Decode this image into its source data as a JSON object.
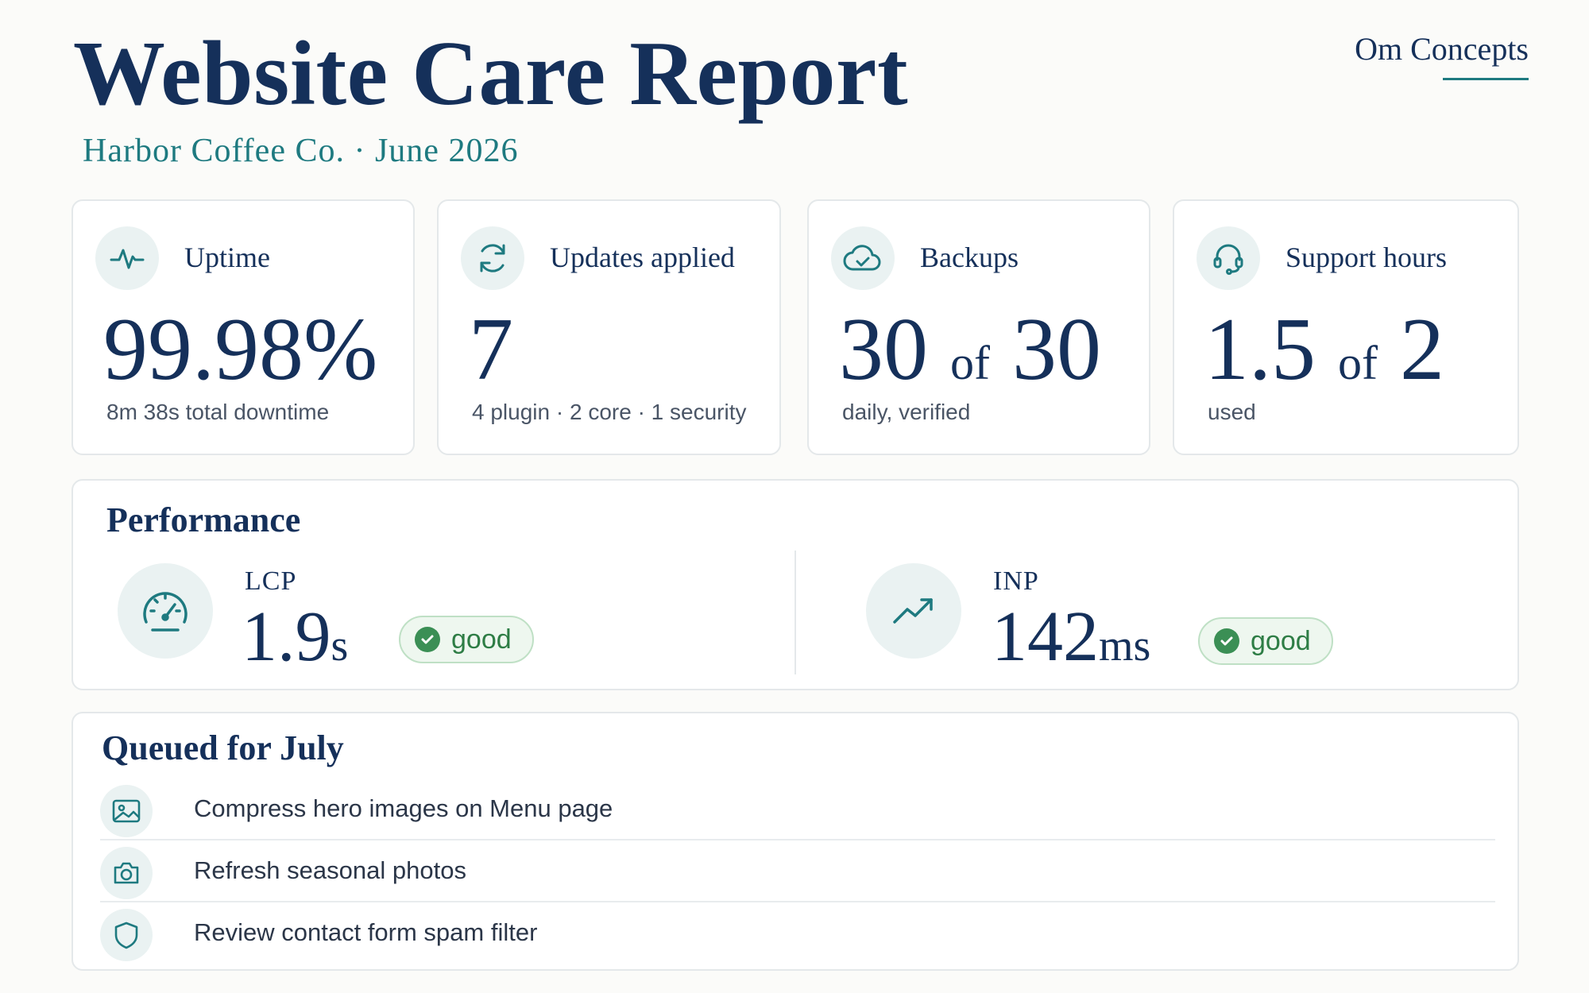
{
  "header": {
    "title": "Website Care Report",
    "subtitle": "Harbor Coffee Co. · June 2026",
    "brand": "Om Concepts"
  },
  "stats": [
    {
      "icon": "pulse-icon",
      "label": "Uptime",
      "value": "99.98%",
      "caption": "8m 38s total downtime"
    },
    {
      "icon": "refresh-icon",
      "label": "Updates applied",
      "value": "7",
      "caption": "4 plugin · 2 core · 1 security"
    },
    {
      "icon": "cloud-check-icon",
      "label": "Backups",
      "value": "30",
      "of": "of",
      "total": "30",
      "caption": "daily, verified"
    },
    {
      "icon": "headset-icon",
      "label": "Support hours",
      "value": "1.5",
      "of": "of",
      "total": "2",
      "caption": "used"
    }
  ],
  "performance": {
    "title": "Performance",
    "metrics": [
      {
        "icon": "gauge-icon",
        "label": "LCP",
        "value": "1.9",
        "unit": "s",
        "status": "good"
      },
      {
        "icon": "trend-up-icon",
        "label": "INP",
        "value": "142",
        "unit": "ms",
        "status": "good"
      }
    ]
  },
  "queue": {
    "title": "Queued for July",
    "items": [
      {
        "icon": "image-icon",
        "text": "Compress hero images on Menu page"
      },
      {
        "icon": "camera-icon",
        "text": "Refresh seasonal photos"
      },
      {
        "icon": "shield-icon",
        "text": "Review contact form spam filter"
      }
    ]
  },
  "colors": {
    "navy": "#15305a",
    "teal": "#1e7a80",
    "good_green": "#2e7d45",
    "card_border": "#e4e8ea",
    "icon_bg": "#eaf2f2"
  }
}
